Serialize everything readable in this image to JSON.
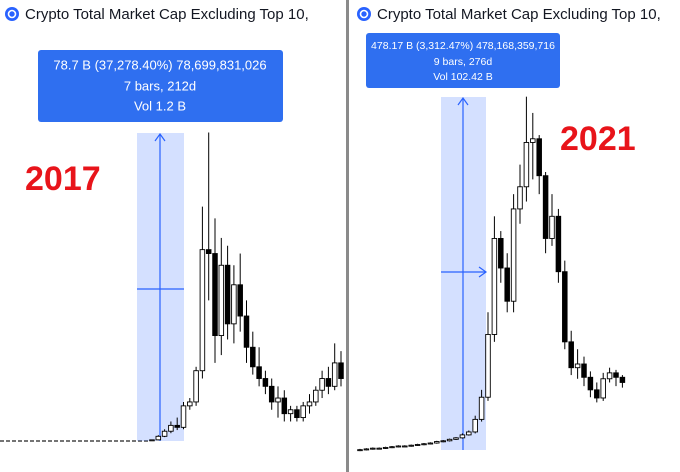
{
  "chart_data": [
    {
      "type": "candlestick",
      "title": "Crypto Total Market Cap Excluding Top 10,",
      "annotation": "2017",
      "tooltip": [
        "78.7 B (37,278.40%) 78,699,831,026",
        "7 bars, 212d",
        "Vol 1.2 B"
      ],
      "ylim": [
        0,
        95
      ],
      "up_color": "#ffffff",
      "down_color": "#000000",
      "open": [
        0.2,
        0.3,
        1.2,
        2.5,
        4,
        3.5,
        9,
        10,
        18,
        49,
        48,
        27,
        45,
        30,
        40,
        32,
        24,
        19,
        16,
        14,
        10,
        11,
        7,
        8,
        6,
        9,
        10,
        13,
        16,
        14,
        20
      ],
      "high": [
        0.4,
        1.5,
        3,
        5,
        6,
        10,
        11,
        19,
        60,
        79,
        57,
        52,
        50,
        45,
        48,
        36,
        28,
        24,
        18,
        16,
        14,
        13,
        9,
        9,
        10,
        12,
        14,
        18,
        19,
        25,
        23
      ],
      "low": [
        0.1,
        0.2,
        1,
        2,
        2.8,
        3,
        8,
        9,
        16,
        36,
        20,
        22,
        26,
        25,
        28,
        20,
        17,
        14,
        12,
        8,
        6,
        5,
        5,
        5,
        5,
        7,
        9,
        11,
        12,
        13,
        14
      ],
      "close": [
        0.3,
        1.2,
        2.5,
        4,
        3.5,
        9,
        10,
        18,
        49,
        48,
        27,
        45,
        30,
        40,
        32,
        24,
        19,
        16,
        14,
        10,
        11,
        7,
        8,
        6,
        9,
        10,
        13,
        16,
        14,
        20,
        16
      ]
    },
    {
      "type": "candlestick",
      "title": "Crypto Total Market Cap Excluding Top 10,",
      "annotation": "2021",
      "tooltip": [
        "478.17 B (3,312.47%) 478,168,359,716",
        "9 bars, 276d",
        "Vol 102.42 B"
      ],
      "ylim": [
        0,
        520
      ],
      "up_color": "#ffffff",
      "down_color": "#000000",
      "open": [
        13,
        14,
        15,
        16,
        16,
        17,
        18,
        19,
        19,
        20,
        21,
        22,
        23,
        25,
        26,
        28,
        30,
        34,
        38,
        55,
        85,
        170,
        300,
        260,
        215,
        340,
        370,
        430,
        435,
        385,
        300,
        330,
        255,
        160,
        125,
        130,
        112,
        95,
        84,
        110,
        118,
        112
      ],
      "high": [
        15,
        16,
        17,
        17,
        18,
        19,
        20,
        20,
        21,
        22,
        23,
        24,
        26,
        27,
        29,
        31,
        36,
        40,
        60,
        95,
        200,
        330,
        310,
        280,
        360,
        400,
        492,
        470,
        440,
        390,
        360,
        340,
        270,
        175,
        150,
        140,
        120,
        105,
        118,
        125,
        122,
        115
      ],
      "low": [
        12,
        13,
        14,
        15,
        15,
        16,
        17,
        18,
        18,
        19,
        20,
        21,
        22,
        24,
        25,
        27,
        29,
        33,
        36,
        52,
        80,
        160,
        240,
        200,
        200,
        320,
        350,
        380,
        360,
        280,
        290,
        240,
        150,
        115,
        110,
        100,
        85,
        78,
        80,
        105,
        100,
        98
      ],
      "close": [
        14,
        15,
        16,
        16,
        17,
        18,
        19,
        19,
        20,
        21,
        22,
        23,
        25,
        26,
        28,
        30,
        34,
        38,
        55,
        85,
        170,
        300,
        260,
        215,
        340,
        370,
        430,
        435,
        385,
        300,
        330,
        255,
        160,
        125,
        130,
        112,
        95,
        84,
        110,
        118,
        112,
        105
      ]
    }
  ]
}
